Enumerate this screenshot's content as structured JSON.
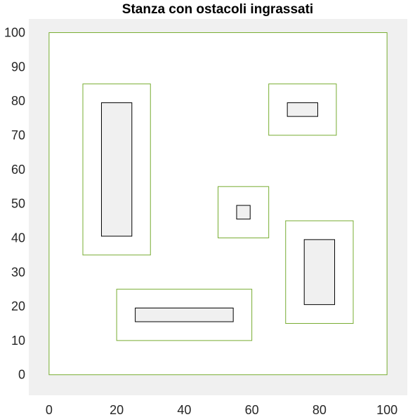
{
  "chart_data": {
    "type": "rectangles",
    "title": "Stanza con ostacoli ingrassati",
    "xlabel": "",
    "ylabel": "",
    "xlim": [
      -6,
      106
    ],
    "ylim": [
      -6,
      104
    ],
    "xticks": [
      0,
      20,
      40,
      60,
      80,
      100
    ],
    "yticks": [
      0,
      10,
      20,
      30,
      40,
      50,
      60,
      70,
      80,
      90,
      100
    ],
    "grid": false,
    "axes_background": "#f0f0f0",
    "room": {
      "x": [
        0,
        100
      ],
      "y": [
        0,
        100
      ],
      "fill": "#ffffff",
      "edge": "#77ac30"
    },
    "inflated_obstacles": {
      "edge": "#77ac30",
      "fill": "none",
      "rects": [
        {
          "x": [
            10,
            30
          ],
          "y": [
            35,
            85
          ]
        },
        {
          "x": [
            65,
            85
          ],
          "y": [
            70,
            85
          ]
        },
        {
          "x": [
            50,
            65
          ],
          "y": [
            40,
            55
          ]
        },
        {
          "x": [
            70,
            90
          ],
          "y": [
            15,
            45
          ]
        },
        {
          "x": [
            20,
            60
          ],
          "y": [
            10,
            25
          ]
        }
      ]
    },
    "obstacles": {
      "edge": "#000000",
      "fill": "#f0f0f0",
      "rects": [
        {
          "x": [
            15.5,
            24.5
          ],
          "y": [
            40.5,
            79.5
          ]
        },
        {
          "x": [
            70.5,
            79.5
          ],
          "y": [
            75.5,
            79.5
          ]
        },
        {
          "x": [
            55.5,
            59.5
          ],
          "y": [
            45.5,
            49.5
          ]
        },
        {
          "x": [
            75.5,
            84.5
          ],
          "y": [
            20.5,
            39.5
          ]
        },
        {
          "x": [
            25.5,
            54.5
          ],
          "y": [
            15.5,
            19.5
          ]
        }
      ]
    }
  }
}
